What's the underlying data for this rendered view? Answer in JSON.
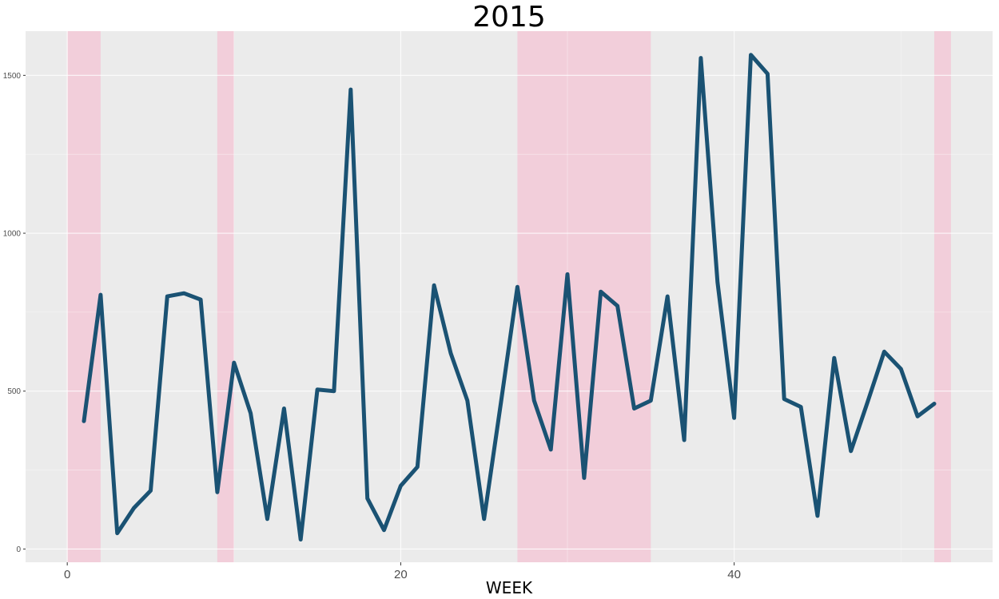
{
  "chart_data": {
    "type": "line",
    "title": "2015",
    "xlabel": "WEEK",
    "ylabel": "",
    "xlim": [
      -2.5,
      55.5
    ],
    "ylim": [
      -42,
      1640
    ],
    "x_ticks": [
      0,
      20,
      40
    ],
    "y_ticks": [
      0,
      500,
      1000,
      1500
    ],
    "grid": true,
    "legend": "none",
    "colors": {
      "panel": "#ebebeb",
      "grid": "#ffffff",
      "line": "#1a5273",
      "band": "#f4c2d3"
    },
    "shaded_ranges": [
      [
        0,
        2
      ],
      [
        9,
        10
      ],
      [
        27,
        35
      ],
      [
        52,
        53
      ]
    ],
    "series": [
      {
        "x": [
          1,
          2,
          3,
          4,
          5,
          6,
          7,
          8,
          9,
          10,
          11,
          12,
          13,
          14,
          15,
          16,
          17,
          18,
          19,
          20,
          21,
          22,
          23,
          24,
          25,
          26,
          27,
          28,
          29,
          30,
          31,
          32,
          33,
          34,
          35,
          36,
          37,
          38,
          39,
          40,
          41,
          42,
          43,
          44,
          45,
          46,
          47,
          48,
          49,
          50,
          51,
          52
        ],
        "values": [
          405,
          805,
          50,
          130,
          185,
          800,
          810,
          790,
          180,
          590,
          430,
          95,
          445,
          30,
          505,
          500,
          1455,
          160,
          60,
          200,
          260,
          835,
          620,
          470,
          95,
          460,
          830,
          470,
          315,
          870,
          225,
          815,
          770,
          445,
          470,
          800,
          345,
          1555,
          845,
          415,
          1565,
          1505,
          475,
          450,
          105,
          605,
          310,
          465,
          625,
          570,
          420,
          460
        ]
      }
    ]
  }
}
